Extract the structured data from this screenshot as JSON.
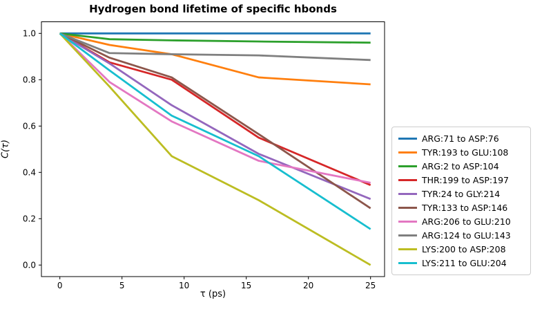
{
  "chart_data": {
    "type": "line",
    "title": "Hydrogen bond lifetime of specific hbonds",
    "xlabel": "τ (ps)",
    "ylabel": "C(τ)",
    "x": [
      0,
      4,
      9,
      16,
      25
    ],
    "x_ticks": [
      0,
      5,
      10,
      15,
      20,
      25
    ],
    "y_ticks": [
      "0.0",
      "0.2",
      "0.4",
      "0.6",
      "0.8",
      "1.0"
    ],
    "xlim": [
      -1.5,
      26.3
    ],
    "ylim": [
      -0.05,
      1.05
    ],
    "grid": false,
    "legend_position": "right of axes, outside",
    "series": [
      {
        "name": "ARG:71 to ASP:76",
        "color": "#1f77b4",
        "values": [
          1.0,
          1.0,
          1.0,
          1.0,
          1.0
        ]
      },
      {
        "name": "TYR:193 to GLU:108",
        "color": "#ff7f0e",
        "values": [
          1.0,
          0.95,
          0.91,
          0.81,
          0.78
        ]
      },
      {
        "name": "ARG:2 to ASP:104",
        "color": "#2ca02c",
        "values": [
          1.0,
          0.975,
          0.97,
          0.965,
          0.96
        ]
      },
      {
        "name": "THR:199 to ASP:197",
        "color": "#d62728",
        "values": [
          1.0,
          0.875,
          0.8,
          0.55,
          0.345
        ]
      },
      {
        "name": "TYR:24 to GLY:214",
        "color": "#9467bd",
        "values": [
          1.0,
          0.87,
          0.69,
          0.48,
          0.285
        ]
      },
      {
        "name": "TYR:133 to ASP:146",
        "color": "#8c564b",
        "values": [
          1.0,
          0.895,
          0.81,
          0.565,
          0.245
        ]
      },
      {
        "name": "ARG:206 to GLU:210",
        "color": "#e377c2",
        "values": [
          1.0,
          0.79,
          0.62,
          0.45,
          0.355
        ]
      },
      {
        "name": "ARG:124 to GLU:143",
        "color": "#7f7f7f",
        "values": [
          1.0,
          0.915,
          0.91,
          0.905,
          0.885
        ]
      },
      {
        "name": "LYS:200 to ASP:208",
        "color": "#bcbd22",
        "values": [
          1.0,
          0.77,
          0.47,
          0.28,
          0.0
        ]
      },
      {
        "name": "LYS:211 to GLU:204",
        "color": "#17becf",
        "values": [
          1.0,
          0.84,
          0.645,
          0.47,
          0.155
        ]
      }
    ],
    "axis_color": "#000000",
    "background_color": "#ffffff"
  }
}
